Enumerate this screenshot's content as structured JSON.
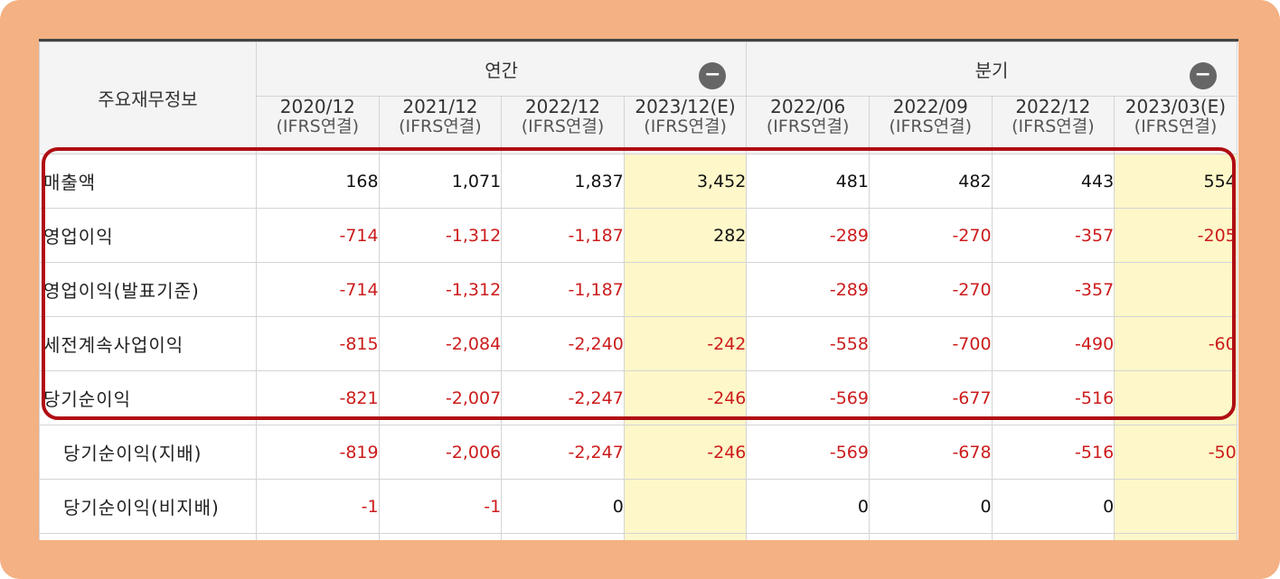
{
  "table": {
    "corner_label": "주요재무정보",
    "groups": [
      {
        "label": "연간",
        "toggle_symbol": "−"
      },
      {
        "label": "분기",
        "toggle_symbol": "−"
      }
    ],
    "periods": [
      {
        "date": "2020/12",
        "basis": "(IFRS연결)",
        "estimate": false
      },
      {
        "date": "2021/12",
        "basis": "(IFRS연결)",
        "estimate": false
      },
      {
        "date": "2022/12",
        "basis": "(IFRS연결)",
        "estimate": false
      },
      {
        "date": "2023/12(E)",
        "basis": "(IFRS연결)",
        "estimate": true
      },
      {
        "date": "2022/06",
        "basis": "(IFRS연결)",
        "estimate": false
      },
      {
        "date": "2022/09",
        "basis": "(IFRS연결)",
        "estimate": false
      },
      {
        "date": "2022/12",
        "basis": "(IFRS연결)",
        "estimate": false
      },
      {
        "date": "2023/03(E)",
        "basis": "(IFRS연결)",
        "estimate": true
      }
    ],
    "rows": [
      {
        "label": "매출액",
        "values": [
          "168",
          "1,071",
          "1,837",
          "3,452",
          "481",
          "482",
          "443",
          "554"
        ]
      },
      {
        "label": "영업이익",
        "values": [
          "-714",
          "-1,312",
          "-1,187",
          "282",
          "-289",
          "-270",
          "-357",
          "-205"
        ]
      },
      {
        "label": "영업이익(발표기준)",
        "values": [
          "-714",
          "-1,312",
          "-1,187",
          "",
          "-289",
          "-270",
          "-357",
          ""
        ]
      },
      {
        "label": "세전계속사업이익",
        "values": [
          "-815",
          "-2,084",
          "-2,240",
          "-242",
          "-558",
          "-700",
          "-490",
          "-60"
        ]
      },
      {
        "label": "당기순이익",
        "values": [
          "-821",
          "-2,007",
          "-2,247",
          "-246",
          "-569",
          "-677",
          "-516",
          ""
        ]
      },
      {
        "label": "당기순이익(지배)",
        "values": [
          "-819",
          "-2,006",
          "-2,247",
          "-246",
          "-569",
          "-678",
          "-516",
          "-50"
        ]
      },
      {
        "label": "당기순이익(비지배)",
        "values": [
          "-1",
          "-1",
          "0",
          "",
          "0",
          "0",
          "0",
          ""
        ]
      }
    ]
  },
  "colors": {
    "frame": "#f4b183",
    "highlight_border": "#b00d14",
    "negative_text": "#cc1c1c",
    "estimate_fill": "#fdf7c9",
    "header_fill": "#f4f4f4"
  }
}
